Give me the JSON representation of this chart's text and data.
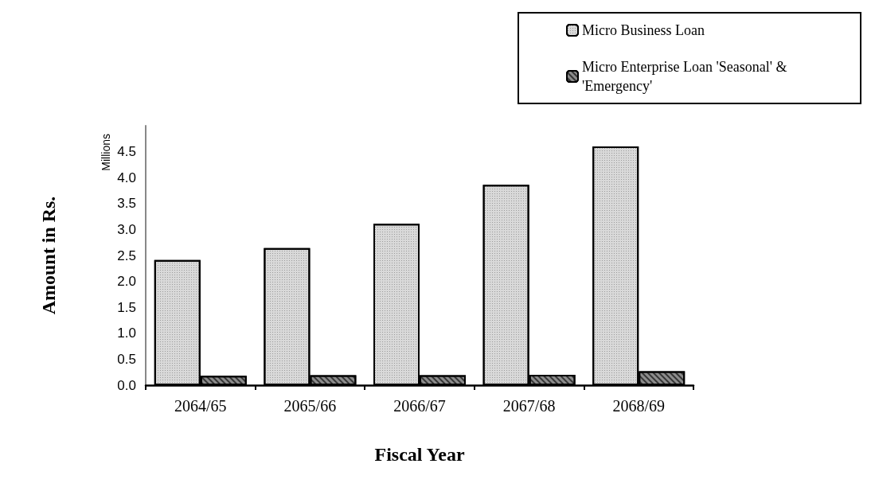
{
  "chart_data": {
    "type": "bar",
    "xlabel": "Fiscal Year",
    "ylabel": "Amount in Rs.",
    "annotations": [
      "Millions"
    ],
    "categories": [
      "2064/65",
      "2065/66",
      "2066/67",
      "2067/68",
      "2068/69"
    ],
    "series": [
      {
        "name": "Micro Business Loan",
        "color": "#d9d9d9",
        "values": [
          2.41,
          2.64,
          3.11,
          3.86,
          4.6
        ]
      },
      {
        "name": "Micro Enterprise Loan 'Seasonal' & 'Emergency'",
        "color": "#8c8c8c",
        "values": [
          0.18,
          0.19,
          0.19,
          0.2,
          0.27
        ]
      }
    ],
    "ylim": [
      0,
      5
    ],
    "yticks": [
      {
        "value": 0,
        "label": "0.0"
      },
      {
        "value": 0.5,
        "label": "0.5"
      },
      {
        "value": 1,
        "label": "1.0"
      },
      {
        "value": 1.5,
        "label": "1.5"
      },
      {
        "value": 2,
        "label": "2.0"
      },
      {
        "value": 2.5,
        "label": "2.5"
      },
      {
        "value": 3,
        "label": "3.0"
      },
      {
        "value": 3.5,
        "label": "3.5"
      },
      {
        "value": 4,
        "label": "4.0"
      },
      {
        "value": 4.5,
        "label": "4.5"
      }
    ],
    "grid": false,
    "legend": "top right"
  }
}
